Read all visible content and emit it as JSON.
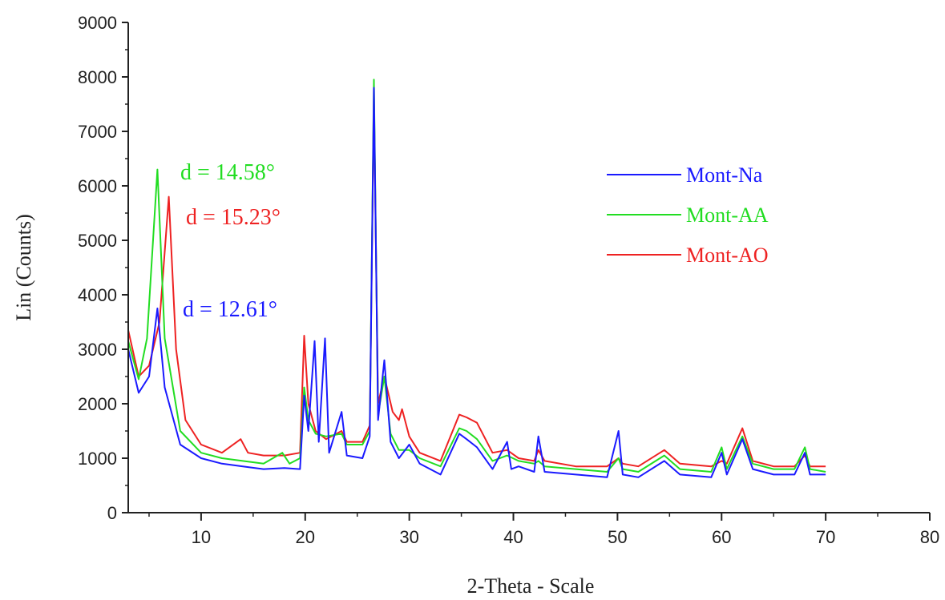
{
  "chart_data": {
    "type": "line",
    "title": "",
    "xlabel": "2-Theta - Scale",
    "ylabel": "Lin (Counts)",
    "xlim": [
      3,
      80
    ],
    "ylim": [
      0,
      9000
    ],
    "x_ticks": [
      "10",
      "20",
      "30",
      "40",
      "50",
      "60",
      "70",
      "80"
    ],
    "y_ticks": [
      "0",
      "1000",
      "2000",
      "3000",
      "4000",
      "5000",
      "6000",
      "7000",
      "8000",
      "9000"
    ],
    "grid": false,
    "legend_position": "right",
    "series": [
      {
        "name": "Mont-Na",
        "color": "#1a1aff",
        "points": [
          [
            3,
            3000
          ],
          [
            4,
            2200
          ],
          [
            5,
            2500
          ],
          [
            5.8,
            3750
          ],
          [
            6.5,
            2300
          ],
          [
            8,
            1250
          ],
          [
            10,
            1000
          ],
          [
            12,
            900
          ],
          [
            14,
            850
          ],
          [
            16,
            800
          ],
          [
            18,
            820
          ],
          [
            19.5,
            800
          ],
          [
            19.9,
            2150
          ],
          [
            20.3,
            1500
          ],
          [
            20.9,
            3150
          ],
          [
            21.3,
            1300
          ],
          [
            21.9,
            3200
          ],
          [
            22.3,
            1100
          ],
          [
            23.5,
            1850
          ],
          [
            24,
            1050
          ],
          [
            25.5,
            1000
          ],
          [
            26.2,
            1400
          ],
          [
            26.6,
            7800
          ],
          [
            27,
            1700
          ],
          [
            27.6,
            2800
          ],
          [
            28.2,
            1300
          ],
          [
            29,
            1000
          ],
          [
            30,
            1250
          ],
          [
            31,
            900
          ],
          [
            33,
            700
          ],
          [
            34.8,
            1450
          ],
          [
            35.5,
            1350
          ],
          [
            36.5,
            1200
          ],
          [
            38,
            800
          ],
          [
            39.4,
            1300
          ],
          [
            39.8,
            800
          ],
          [
            40.5,
            850
          ],
          [
            42,
            750
          ],
          [
            42.4,
            1400
          ],
          [
            43,
            750
          ],
          [
            46,
            700
          ],
          [
            49,
            650
          ],
          [
            50.1,
            1500
          ],
          [
            50.5,
            700
          ],
          [
            52,
            650
          ],
          [
            54.5,
            950
          ],
          [
            56,
            700
          ],
          [
            59,
            650
          ],
          [
            60,
            1100
          ],
          [
            60.5,
            700
          ],
          [
            62,
            1350
          ],
          [
            63,
            800
          ],
          [
            65,
            700
          ],
          [
            67,
            700
          ],
          [
            68,
            1100
          ],
          [
            68.5,
            700
          ],
          [
            70,
            700
          ]
        ]
      },
      {
        "name": "Mont-AA",
        "color": "#22dd22",
        "points": [
          [
            3,
            3150
          ],
          [
            4,
            2450
          ],
          [
            4.8,
            3200
          ],
          [
            5.8,
            6300
          ],
          [
            6.5,
            3200
          ],
          [
            8,
            1500
          ],
          [
            10,
            1100
          ],
          [
            12,
            1000
          ],
          [
            14,
            950
          ],
          [
            16,
            900
          ],
          [
            17.8,
            1100
          ],
          [
            18.5,
            900
          ],
          [
            19.5,
            1000
          ],
          [
            19.9,
            2300
          ],
          [
            20.3,
            1700
          ],
          [
            21,
            1450
          ],
          [
            22,
            1400
          ],
          [
            23.5,
            1450
          ],
          [
            24,
            1250
          ],
          [
            25.5,
            1250
          ],
          [
            26.2,
            1500
          ],
          [
            26.6,
            7950
          ],
          [
            27,
            1800
          ],
          [
            27.6,
            2500
          ],
          [
            28.2,
            1450
          ],
          [
            29,
            1150
          ],
          [
            30,
            1150
          ],
          [
            31,
            1000
          ],
          [
            33,
            850
          ],
          [
            34.8,
            1550
          ],
          [
            35.5,
            1500
          ],
          [
            36.5,
            1350
          ],
          [
            38,
            950
          ],
          [
            39.4,
            1050
          ],
          [
            40.5,
            950
          ],
          [
            42,
            900
          ],
          [
            42.4,
            950
          ],
          [
            43,
            850
          ],
          [
            46,
            800
          ],
          [
            49,
            750
          ],
          [
            50.1,
            1000
          ],
          [
            50.5,
            800
          ],
          [
            52,
            750
          ],
          [
            54.5,
            1050
          ],
          [
            56,
            800
          ],
          [
            59,
            750
          ],
          [
            60,
            1200
          ],
          [
            60.5,
            800
          ],
          [
            62,
            1400
          ],
          [
            63,
            900
          ],
          [
            65,
            800
          ],
          [
            67,
            800
          ],
          [
            68,
            1200
          ],
          [
            68.5,
            800
          ],
          [
            70,
            750
          ]
        ]
      },
      {
        "name": "Mont-AO",
        "color": "#ee2222",
        "points": [
          [
            3,
            3350
          ],
          [
            4,
            2500
          ],
          [
            5,
            2700
          ],
          [
            6,
            3500
          ],
          [
            6.9,
            5800
          ],
          [
            7.6,
            3000
          ],
          [
            8.5,
            1700
          ],
          [
            10,
            1250
          ],
          [
            12,
            1100
          ],
          [
            13.8,
            1350
          ],
          [
            14.5,
            1100
          ],
          [
            16,
            1050
          ],
          [
            18,
            1050
          ],
          [
            19.5,
            1100
          ],
          [
            19.9,
            3250
          ],
          [
            20.3,
            2000
          ],
          [
            21,
            1500
          ],
          [
            22,
            1350
          ],
          [
            23.5,
            1500
          ],
          [
            24,
            1300
          ],
          [
            25.5,
            1300
          ],
          [
            26.2,
            1600
          ],
          [
            26.6,
            7600
          ],
          [
            27,
            2000
          ],
          [
            27.6,
            2500
          ],
          [
            28.4,
            1850
          ],
          [
            29,
            1700
          ],
          [
            29.3,
            1900
          ],
          [
            30,
            1400
          ],
          [
            31,
            1100
          ],
          [
            33,
            950
          ],
          [
            34.8,
            1800
          ],
          [
            35.5,
            1750
          ],
          [
            36.5,
            1650
          ],
          [
            38,
            1100
          ],
          [
            39.4,
            1150
          ],
          [
            40.5,
            1000
          ],
          [
            42,
            950
          ],
          [
            42.4,
            1150
          ],
          [
            43,
            950
          ],
          [
            46,
            850
          ],
          [
            49,
            850
          ],
          [
            50.1,
            1000
          ],
          [
            50.5,
            900
          ],
          [
            52,
            850
          ],
          [
            54.5,
            1150
          ],
          [
            56,
            900
          ],
          [
            59,
            850
          ],
          [
            60,
            950
          ],
          [
            60.5,
            900
          ],
          [
            62,
            1550
          ],
          [
            63,
            950
          ],
          [
            65,
            850
          ],
          [
            67,
            850
          ],
          [
            68,
            1050
          ],
          [
            68.5,
            850
          ],
          [
            70,
            850
          ]
        ]
      }
    ],
    "annotations": [
      {
        "text": "d = 14.58°",
        "color": "#22dd22"
      },
      {
        "text": "d = 15.23°",
        "color": "#ee2222"
      },
      {
        "text": "d = 12.61°",
        "color": "#1a1aff"
      }
    ]
  }
}
